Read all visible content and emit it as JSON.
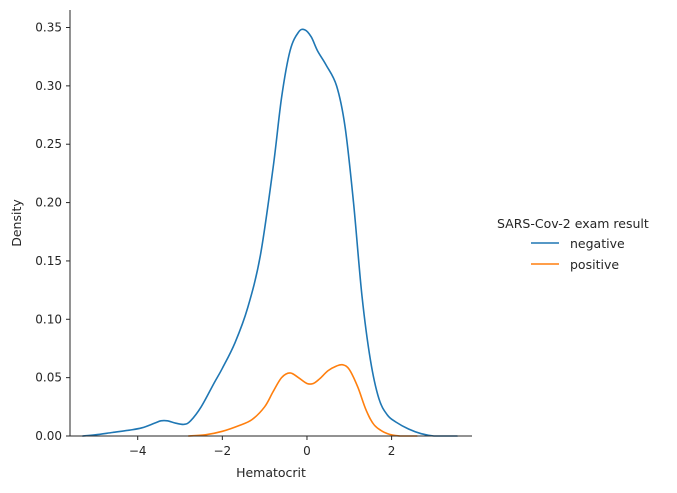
{
  "chart_data": {
    "type": "line",
    "xlabel": "Hematocrit",
    "ylabel": "Density",
    "xlim": [
      -5.6,
      3.9
    ],
    "ylim": [
      0,
      0.365
    ],
    "xticks": [
      -4,
      -2,
      0,
      2
    ],
    "xtick_labels": [
      "−4",
      "−2",
      "0",
      "2"
    ],
    "yticks": [
      0.0,
      0.05,
      0.1,
      0.15,
      0.2,
      0.25,
      0.3,
      0.35
    ],
    "ytick_labels": [
      "0.00",
      "0.05",
      "0.10",
      "0.15",
      "0.20",
      "0.25",
      "0.30",
      "0.35"
    ],
    "grid": false,
    "legend": {
      "title": "SARS-Cov-2 exam result",
      "placement": "right",
      "entries": [
        "negative",
        "positive"
      ]
    },
    "series": [
      {
        "name": "negative",
        "color": "#1f77b4",
        "x": [
          -5.3,
          -5.0,
          -4.6,
          -4.2,
          -3.9,
          -3.6,
          -3.45,
          -3.3,
          -3.1,
          -2.9,
          -2.75,
          -2.5,
          -2.2,
          -2.0,
          -1.7,
          -1.4,
          -1.1,
          -0.8,
          -0.6,
          -0.4,
          -0.2,
          -0.05,
          0.1,
          0.25,
          0.45,
          0.7,
          0.9,
          1.1,
          1.3,
          1.5,
          1.7,
          1.9,
          2.1,
          2.4,
          2.7,
          3.0,
          3.3,
          3.55
        ],
        "y": [
          0.0,
          0.001,
          0.003,
          0.005,
          0.007,
          0.011,
          0.013,
          0.013,
          0.011,
          0.01,
          0.013,
          0.025,
          0.045,
          0.058,
          0.08,
          0.11,
          0.155,
          0.23,
          0.29,
          0.33,
          0.346,
          0.348,
          0.342,
          0.33,
          0.318,
          0.3,
          0.265,
          0.2,
          0.12,
          0.065,
          0.032,
          0.018,
          0.012,
          0.006,
          0.002,
          0.0,
          0.0,
          0.0
        ]
      },
      {
        "name": "positive",
        "color": "#ff7f0e",
        "x": [
          -2.8,
          -2.4,
          -2.0,
          -1.6,
          -1.3,
          -1.0,
          -0.8,
          -0.6,
          -0.4,
          -0.2,
          0.0,
          0.15,
          0.3,
          0.5,
          0.7,
          0.85,
          1.0,
          1.2,
          1.4,
          1.6,
          1.9,
          2.2,
          2.6
        ],
        "y": [
          0.0,
          0.001,
          0.004,
          0.009,
          0.014,
          0.025,
          0.038,
          0.05,
          0.054,
          0.05,
          0.045,
          0.045,
          0.049,
          0.056,
          0.06,
          0.061,
          0.057,
          0.042,
          0.022,
          0.009,
          0.002,
          0.0,
          0.0
        ]
      }
    ]
  }
}
